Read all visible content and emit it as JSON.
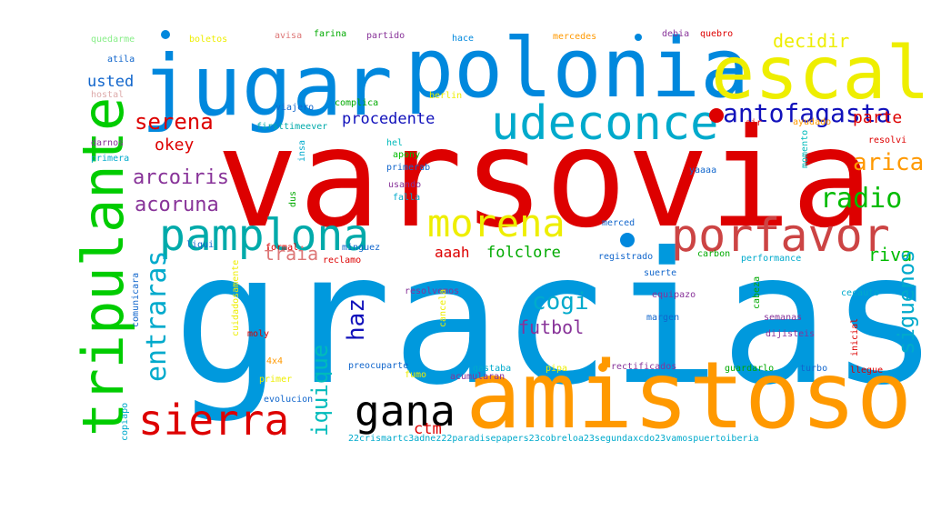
{
  "word_cloud": {
    "words": [
      {
        "text": "gracias",
        "color": "#0099dd"
      },
      {
        "text": "varsovia",
        "color": "#dd0000"
      },
      {
        "text": "amistoso",
        "color": "#ff9900"
      },
      {
        "text": "jugar",
        "color": "#0088dd"
      },
      {
        "text": "polonia",
        "color": "#0088dd"
      },
      {
        "text": "escal",
        "color": "#eeee00"
      },
      {
        "text": "tripulante",
        "color": "#00cc00"
      },
      {
        "text": "udeconce",
        "color": "#00aacc"
      },
      {
        "text": "pamplona",
        "color": "#00aaaa"
      },
      {
        "text": "porfavor",
        "color": "#cc4444"
      },
      {
        "text": "morena",
        "color": "#eeee00"
      },
      {
        "text": "sierra",
        "color": "#dd0000"
      },
      {
        "text": "gana",
        "color": "#000000"
      },
      {
        "text": "antofagasta",
        "color": "#1111bb"
      },
      {
        "text": "arica",
        "color": "#ff9900"
      },
      {
        "text": "radio",
        "color": "#00bb00"
      },
      {
        "text": "serena",
        "color": "#dd0000"
      },
      {
        "text": "decidir",
        "color": "#eeee00"
      },
      {
        "text": "procedente",
        "color": "#1111bb"
      },
      {
        "text": "usted",
        "color": "#1166cc"
      },
      {
        "text": "arcoiris",
        "color": "#883399"
      },
      {
        "text": "acoruna",
        "color": "#883399"
      },
      {
        "text": "okey",
        "color": "#dd0000"
      },
      {
        "text": "parte",
        "color": "#dd0000"
      },
      {
        "text": "traia",
        "color": "#dd7777"
      },
      {
        "text": "aaah",
        "color": "#dd0000"
      },
      {
        "text": "folclore",
        "color": "#00aa00"
      },
      {
        "text": "riva",
        "color": "#00bb00"
      },
      {
        "text": "entraras",
        "color": "#00aacc"
      },
      {
        "text": "cogi",
        "color": "#00aacc"
      },
      {
        "text": "haz",
        "color": "#1111bb"
      },
      {
        "text": "iquique",
        "color": "#00bbbb"
      },
      {
        "text": "siguenos",
        "color": "#00aacc"
      },
      {
        "text": "futbol",
        "color": "#883399"
      },
      {
        "text": "ctm",
        "color": "#dd0000"
      },
      {
        "text": "quedarme",
        "color": "#88ee88"
      },
      {
        "text": "boletos",
        "color": "#eeee00"
      },
      {
        "text": "avisa",
        "color": "#dd7777"
      },
      {
        "text": "farina",
        "color": "#00aa00"
      },
      {
        "text": "partido",
        "color": "#883399"
      },
      {
        "text": "hace",
        "color": "#0088dd"
      },
      {
        "text": "mercedes",
        "color": "#ff9900"
      },
      {
        "text": "debia",
        "color": "#883399"
      },
      {
        "text": "quebro",
        "color": "#dd0000"
      },
      {
        "text": "atila",
        "color": "#1166cc"
      },
      {
        "text": "hostal",
        "color": "#ddaaaa"
      },
      {
        "text": "viajero",
        "color": "#1166cc"
      },
      {
        "text": "complica",
        "color": "#00aa00"
      },
      {
        "text": "berlin",
        "color": "#eeee00"
      },
      {
        "text": "firsttimeever",
        "color": "#00aaaa"
      },
      {
        "text": "air",
        "color": "#dd0000"
      },
      {
        "text": "ayudado",
        "color": "#ff9900"
      },
      {
        "text": "resolvi",
        "color": "#dd0000"
      },
      {
        "text": "darnos",
        "color": "#883399"
      },
      {
        "text": "hel",
        "color": "#00bbbb"
      },
      {
        "text": "momento",
        "color": "#00bbbb"
      },
      {
        "text": "primera",
        "color": "#00aacc"
      },
      {
        "text": "insa",
        "color": "#00aacc"
      },
      {
        "text": "apony",
        "color": "#00bb00"
      },
      {
        "text": "primerab",
        "color": "#1166cc"
      },
      {
        "text": "yaaaa",
        "color": "#1166cc"
      },
      {
        "text": "usando",
        "color": "#883399"
      },
      {
        "text": "dus",
        "color": "#00aa00"
      },
      {
        "text": "falla",
        "color": "#00aacc"
      },
      {
        "text": "merced",
        "color": "#1166cc"
      },
      {
        "text": "comunicara",
        "color": "#1166cc"
      },
      {
        "text": "liqui",
        "color": "#1166cc"
      },
      {
        "text": "formal",
        "color": "#dd0000"
      },
      {
        "text": "minguez",
        "color": "#1166cc"
      },
      {
        "text": "reclamo",
        "color": "#dd0000"
      },
      {
        "text": "registrado",
        "color": "#1166cc"
      },
      {
        "text": "carbon",
        "color": "#00aa00"
      },
      {
        "text": "performance",
        "color": "#00aacc"
      },
      {
        "text": "suerte",
        "color": "#1166cc"
      },
      {
        "text": "cabeza",
        "color": "#00aa00"
      },
      {
        "text": "cuidadosamente",
        "color": "#eeee00"
      },
      {
        "text": "resolvemos",
        "color": "#883399"
      },
      {
        "text": "equipazo",
        "color": "#883399"
      },
      {
        "text": "cecauto",
        "color": "#00aacc"
      },
      {
        "text": "cancela",
        "color": "#eeee00"
      },
      {
        "text": "margen",
        "color": "#1166cc"
      },
      {
        "text": "semanas",
        "color": "#883399"
      },
      {
        "text": "moly",
        "color": "#dd0000"
      },
      {
        "text": "dijisteis",
        "color": "#883399"
      },
      {
        "text": "inicial",
        "color": "#dd0000"
      },
      {
        "text": "4x4",
        "color": "#ff9900"
      },
      {
        "text": "preocuparte",
        "color": "#1166cc"
      },
      {
        "text": "fumo",
        "color": "#eeee00"
      },
      {
        "text": "acumularan",
        "color": "#883399"
      },
      {
        "text": "gastaba",
        "color": "#00aacc"
      },
      {
        "text": "pipa",
        "color": "#eeee00"
      },
      {
        "text": "rectificados",
        "color": "#883399"
      },
      {
        "text": "guardarlo",
        "color": "#00aa00"
      },
      {
        "text": "turbo",
        "color": "#1166cc"
      },
      {
        "text": "llegue",
        "color": "#dd0000"
      },
      {
        "text": "primer",
        "color": "#eeee00"
      },
      {
        "text": "copiapo",
        "color": "#00aacc"
      },
      {
        "text": "evolucion",
        "color": "#1166cc"
      },
      {
        "text": "22crismartc3adnez22paradisepapers23cobreloa23segundaxcdo23vamospuertoiberia",
        "color": "#00aacc"
      }
    ],
    "dot_colors": [
      "#0088dd",
      "#dd0000",
      "#0088dd",
      "#ff9900",
      "#0088dd"
    ]
  }
}
